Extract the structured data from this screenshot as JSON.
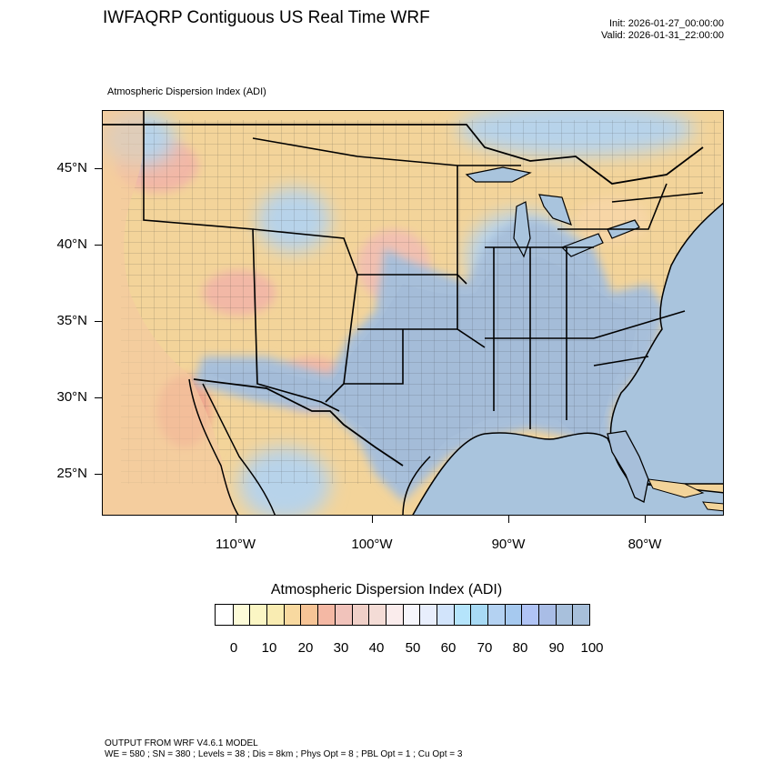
{
  "header": {
    "title": "IWFAQRP Contiguous US Real Time WRF",
    "init": "Init: 2026-01-27_00:00:00",
    "valid": "Valid: 2026-01-31_22:00:00"
  },
  "map": {
    "subtitle": "Atmospheric Dispersion Index   (ADI)",
    "lat_labels": [
      "45°N",
      "40°N",
      "35°N",
      "30°N",
      "25°N"
    ],
    "lon_labels": [
      "110°W",
      "100°W",
      "90°W",
      "80°W"
    ],
    "colors": {
      "land_low": "#f3d49a",
      "land_mid": "#f2b8a6",
      "land_high": "#b7d3ea",
      "land_max": "#a7c1dc",
      "ocean": "#a9c4dd",
      "border": "#000000"
    }
  },
  "colorbar": {
    "title": "Atmospheric Dispersion Index  (ADI)",
    "labels": [
      "0",
      "10",
      "20",
      "30",
      "40",
      "50",
      "60",
      "70",
      "80",
      "90",
      "100"
    ],
    "colors": [
      "#ffffff",
      "#fdfbd8",
      "#fbf6c4",
      "#f9ecb2",
      "#f8d9a0",
      "#f6c496",
      "#f4b8a4",
      "#f1c3bb",
      "#f0d0c8",
      "#f4dcd6",
      "#faecec",
      "#f6f6fc",
      "#e8eefc",
      "#d2e4fb",
      "#b5e4fb",
      "#a8daf5",
      "#b4d2f2",
      "#a6c9ef",
      "#b0c4f5",
      "#a9bde6",
      "#a8c0dc",
      "#a7bfda"
    ]
  },
  "footer": {
    "line1": "OUTPUT FROM WRF V4.6.1 MODEL",
    "line2": "WE = 580 ; SN = 380 ; Levels = 38 ; Dis = 8km ; Phys Opt = 8 ; PBL Opt = 1 ; Cu Opt = 3"
  }
}
